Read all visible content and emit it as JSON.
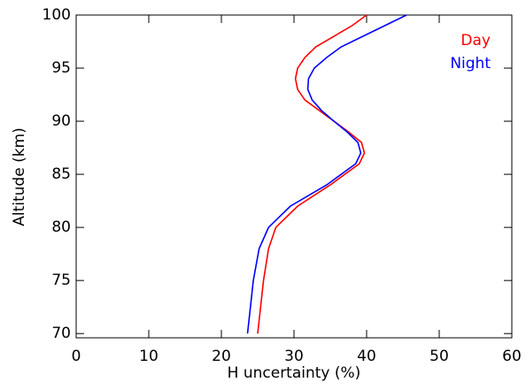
{
  "chart_data": {
    "type": "line",
    "xlabel": "H uncertainty (%)",
    "ylabel": "Altitude (km)",
    "y": [
      70,
      75,
      78,
      80,
      82,
      84,
      86,
      87,
      88,
      89,
      90,
      91,
      92,
      93,
      94,
      95,
      96,
      97,
      98,
      99,
      100
    ],
    "series": [
      {
        "name": "Day",
        "color": "#ff0000",
        "values": [
          25,
          25.8,
          26.5,
          27.5,
          30.5,
          35,
          39,
          39.7,
          39.3,
          37.5,
          35.5,
          33.5,
          31.5,
          30.5,
          30.2,
          30.5,
          31.5,
          33,
          35.5,
          38,
          40
        ]
      },
      {
        "name": "Night",
        "color": "#0000ff",
        "values": [
          23.6,
          24.4,
          25.2,
          26.5,
          29.5,
          34.5,
          38.5,
          39.2,
          38.8,
          37.3,
          35.5,
          33.8,
          32.5,
          31.9,
          32,
          32.8,
          34.5,
          36.5,
          39.5,
          42.5,
          45.5
        ]
      }
    ],
    "xlim": [
      0,
      60
    ],
    "xticks": [
      0,
      10,
      20,
      30,
      40,
      50,
      60
    ],
    "ylim": [
      69.6,
      100
    ],
    "yticks": [
      70,
      75,
      80,
      85,
      90,
      95,
      100
    ],
    "legend": "top-right"
  }
}
